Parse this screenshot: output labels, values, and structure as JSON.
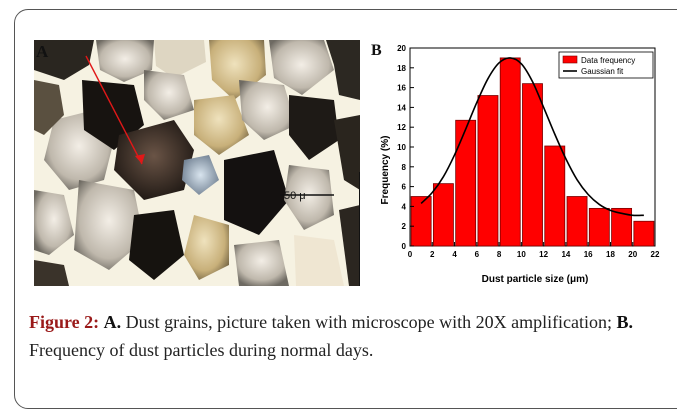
{
  "figure": {
    "panel_a_label": "A",
    "panel_b_label": "B",
    "scale_label": "50 μ",
    "caption": {
      "fig_label": "Figure 2:",
      "part_a_label": "A.",
      "part_a_text": " Dust grains, picture taken with microscope with 20X amplification; ",
      "part_b_label": "B.",
      "part_b_text": " Frequency of dust particles during normal days."
    }
  },
  "chart_data": {
    "type": "bar",
    "title": "",
    "xlabel": "Dust particle size (μm)",
    "ylabel": "Frequency (%)",
    "xlim": [
      0,
      22
    ],
    "ylim": [
      0,
      20
    ],
    "xticks": [
      0,
      2,
      4,
      6,
      8,
      10,
      12,
      14,
      16,
      18,
      20,
      22
    ],
    "yticks": [
      0,
      2,
      4,
      6,
      8,
      10,
      12,
      14,
      16,
      18,
      20
    ],
    "bin_width": 1.8,
    "series": [
      {
        "name": "Data frequency",
        "color": "#ff0000",
        "x": [
          1,
          3,
          5,
          7,
          9,
          11,
          13,
          15,
          17,
          19,
          21
        ],
        "values": [
          5.0,
          6.3,
          12.7,
          15.2,
          19.0,
          16.4,
          10.1,
          5.0,
          3.8,
          3.8,
          2.5
        ]
      },
      {
        "name": "Gaussian fit",
        "type": "line",
        "color": "#000000",
        "x": [
          1,
          2,
          3,
          4,
          5,
          6,
          7,
          8,
          9,
          10,
          11,
          12,
          13,
          14,
          15,
          16,
          17,
          18,
          19,
          20,
          21
        ],
        "values": [
          4.3,
          5.4,
          7.0,
          9.2,
          11.8,
          14.5,
          16.9,
          18.5,
          19.0,
          18.4,
          16.6,
          14.0,
          11.3,
          8.8,
          6.7,
          5.2,
          4.2,
          3.6,
          3.3,
          3.1,
          3.1
        ]
      }
    ],
    "legend_position": "top-right"
  }
}
